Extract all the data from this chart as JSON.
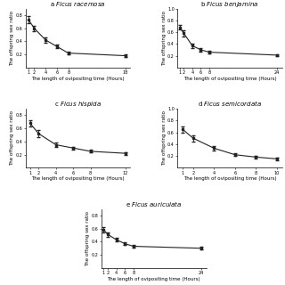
{
  "panels": [
    {
      "title": "a",
      "species": "Ficus racemosa",
      "x": [
        1,
        2,
        4,
        6,
        8,
        18
      ],
      "y": [
        0.73,
        0.6,
        0.42,
        0.32,
        0.22,
        0.18
      ],
      "yerr": [
        0.05,
        0.04,
        0.04,
        0.03,
        0.02,
        0.02
      ],
      "ylim": [
        0,
        0.9
      ],
      "yticks": [
        0.2,
        0.4,
        0.6,
        0.8
      ],
      "xticks": [
        1,
        2,
        4,
        6,
        8,
        18
      ]
    },
    {
      "title": "b",
      "species": "Ficus benjamina",
      "x": [
        1,
        2,
        4,
        6,
        8,
        24
      ],
      "y": [
        0.68,
        0.58,
        0.37,
        0.3,
        0.26,
        0.21
      ],
      "yerr": [
        0.04,
        0.05,
        0.04,
        0.03,
        0.02,
        0.02
      ],
      "ylim": [
        0,
        1.0
      ],
      "yticks": [
        0.2,
        0.4,
        0.6,
        0.8,
        1.0
      ],
      "xticks": [
        1,
        2,
        4,
        6,
        8,
        24
      ]
    },
    {
      "title": "c",
      "species": "Ficus hispida",
      "x": [
        1,
        2,
        4,
        6,
        8,
        12
      ],
      "y": [
        0.68,
        0.52,
        0.35,
        0.3,
        0.25,
        0.22
      ],
      "yerr": [
        0.05,
        0.05,
        0.03,
        0.02,
        0.02,
        0.02
      ],
      "ylim": [
        0,
        0.9
      ],
      "yticks": [
        0.2,
        0.4,
        0.6,
        0.8
      ],
      "xticks": [
        1,
        2,
        4,
        6,
        8,
        12
      ]
    },
    {
      "title": "d",
      "species": "Ficus semicordata",
      "x": [
        1,
        2,
        4,
        6,
        8,
        10
      ],
      "y": [
        0.65,
        0.5,
        0.33,
        0.22,
        0.18,
        0.15
      ],
      "yerr": [
        0.05,
        0.05,
        0.04,
        0.02,
        0.02,
        0.02
      ],
      "ylim": [
        0,
        1.0
      ],
      "yticks": [
        0.2,
        0.4,
        0.6,
        0.8,
        1.0
      ],
      "xticks": [
        1,
        2,
        4,
        6,
        8,
        10
      ]
    },
    {
      "title": "e",
      "species": "Ficus auriculata",
      "x": [
        1,
        2,
        4,
        6,
        8,
        24
      ],
      "y": [
        0.58,
        0.51,
        0.43,
        0.37,
        0.33,
        0.3
      ],
      "yerr": [
        0.04,
        0.03,
        0.03,
        0.02,
        0.02,
        0.02
      ],
      "ylim": [
        0,
        0.9
      ],
      "yticks": [
        0.2,
        0.4,
        0.6,
        0.8
      ],
      "xticks": [
        1,
        2,
        4,
        6,
        8,
        24
      ]
    }
  ],
  "ylabel": "The offspring sex ratio",
  "xlabel": "The length of ovipositing time (Hours)",
  "line_color": "#222222",
  "marker": "s",
  "markersize": 2.0,
  "linewidth": 0.8,
  "capsize": 1.5,
  "elinewidth": 0.6,
  "title_fontsize": 5.0,
  "label_fontsize": 4.0,
  "tick_fontsize": 3.5
}
